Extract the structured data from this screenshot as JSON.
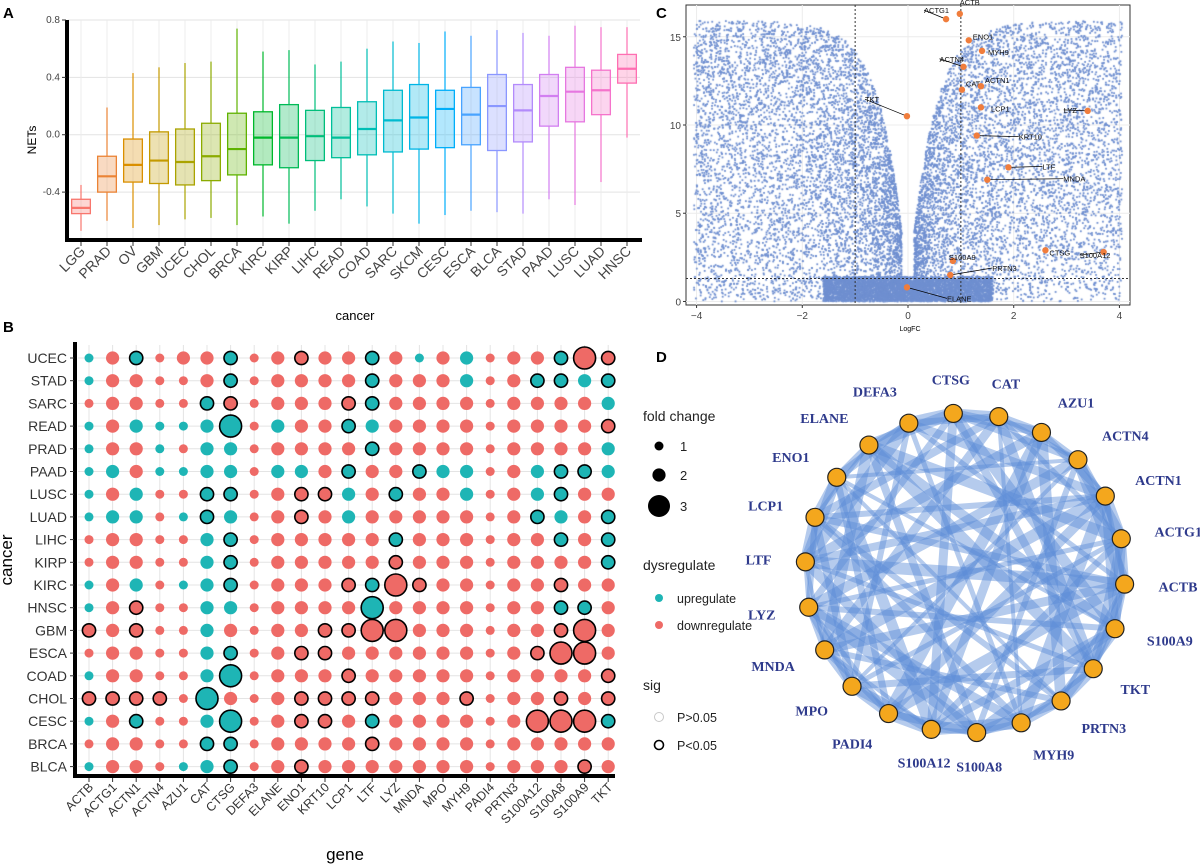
{
  "panels": {
    "a": "A",
    "b": "B",
    "c": "C",
    "d": "D"
  },
  "chart_data": [
    {
      "type": "box",
      "panel": "A",
      "xlabel": "cancer",
      "ylabel": "NETs",
      "ylim": [
        -0.72,
        0.8
      ],
      "yticks": [
        -0.4,
        0.0,
        0.4,
        0.8
      ],
      "ytick_labels": [
        "-0.4",
        "0.0",
        "0.4",
        "0.8"
      ],
      "boxes": [
        {
          "name": "LGG",
          "color": "#F8766D",
          "q1": -0.55,
          "median": -0.51,
          "q3": -0.45,
          "whisker_low": -0.67,
          "whisker_high": -0.35
        },
        {
          "name": "PRAD",
          "color": "#EB8335",
          "q1": -0.4,
          "median": -0.29,
          "q3": -0.15,
          "whisker_low": -0.6,
          "whisker_high": 0.19
        },
        {
          "name": "OV",
          "color": "#DA8F00",
          "q1": -0.33,
          "median": -0.21,
          "q3": -0.03,
          "whisker_low": -0.65,
          "whisker_high": 0.43
        },
        {
          "name": "GBM",
          "color": "#C49A00",
          "q1": -0.34,
          "median": -0.18,
          "q3": 0.02,
          "whisker_low": -0.63,
          "whisker_high": 0.47
        },
        {
          "name": "UCEC",
          "color": "#AAA300",
          "q1": -0.35,
          "median": -0.19,
          "q3": 0.04,
          "whisker_low": -0.59,
          "whisker_high": 0.5
        },
        {
          "name": "CHOL",
          "color": "#8BAB00",
          "q1": -0.32,
          "median": -0.15,
          "q3": 0.08,
          "whisker_low": -0.58,
          "whisker_high": 0.51
        },
        {
          "name": "BRCA",
          "color": "#5FB200",
          "q1": -0.28,
          "median": -0.1,
          "q3": 0.15,
          "whisker_low": -0.63,
          "whisker_high": 0.74
        },
        {
          "name": "KIRC",
          "color": "#00B82B",
          "q1": -0.21,
          "median": -0.02,
          "q3": 0.16,
          "whisker_low": -0.57,
          "whisker_high": 0.58
        },
        {
          "name": "KIRP",
          "color": "#00BB56",
          "q1": -0.23,
          "median": -0.02,
          "q3": 0.21,
          "whisker_low": -0.62,
          "whisker_high": 0.59
        },
        {
          "name": "LIHC",
          "color": "#00BE7A",
          "q1": -0.18,
          "median": -0.01,
          "q3": 0.17,
          "whisker_low": -0.53,
          "whisker_high": 0.49
        },
        {
          "name": "READ",
          "color": "#00BF99",
          "q1": -0.16,
          "median": -0.02,
          "q3": 0.19,
          "whisker_low": -0.45,
          "whisker_high": 0.51
        },
        {
          "name": "COAD",
          "color": "#00BEB5",
          "q1": -0.14,
          "median": 0.04,
          "q3": 0.23,
          "whisker_low": -0.5,
          "whisker_high": 0.6
        },
        {
          "name": "SARC",
          "color": "#00BBCF",
          "q1": -0.12,
          "median": 0.1,
          "q3": 0.31,
          "whisker_low": -0.55,
          "whisker_high": 0.65
        },
        {
          "name": "SKCM",
          "color": "#00B5E6",
          "q1": -0.1,
          "median": 0.12,
          "q3": 0.35,
          "whisker_low": -0.62,
          "whisker_high": 0.64
        },
        {
          "name": "CESC",
          "color": "#00AEF9",
          "q1": -0.09,
          "median": 0.18,
          "q3": 0.31,
          "whisker_low": -0.56,
          "whisker_high": 0.72
        },
        {
          "name": "ESCA",
          "color": "#49A3FF",
          "q1": -0.07,
          "median": 0.14,
          "q3": 0.33,
          "whisker_low": -0.53,
          "whisker_high": 0.69
        },
        {
          "name": "BLCA",
          "color": "#8A97FF",
          "q1": -0.11,
          "median": 0.2,
          "q3": 0.42,
          "whisker_low": -0.54,
          "whisker_high": 0.73
        },
        {
          "name": "STAD",
          "color": "#B38BFB",
          "q1": -0.05,
          "median": 0.17,
          "q3": 0.35,
          "whisker_low": -0.55,
          "whisker_high": 0.71
        },
        {
          "name": "PAAD",
          "color": "#D27FF1",
          "q1": 0.06,
          "median": 0.27,
          "q3": 0.42,
          "whisker_low": -0.45,
          "whisker_high": 0.69
        },
        {
          "name": "LUSC",
          "color": "#E677E0",
          "q1": 0.09,
          "median": 0.3,
          "q3": 0.47,
          "whisker_low": -0.49,
          "whisker_high": 0.76
        },
        {
          "name": "LUAD",
          "color": "#F573CB",
          "q1": 0.14,
          "median": 0.31,
          "q3": 0.45,
          "whisker_low": -0.33,
          "whisker_high": 0.75
        },
        {
          "name": "HNSC",
          "color": "#FE6FB2",
          "q1": 0.36,
          "median": 0.46,
          "q3": 0.56,
          "whisker_low": -0.02,
          "whisker_high": 0.75
        }
      ]
    },
    {
      "type": "scatter",
      "panel": "B",
      "xlabel": "gene",
      "ylabel": "cancer",
      "genes": [
        "ACTB",
        "ACTG1",
        "ACTN1",
        "ACTN4",
        "AZU1",
        "CAT",
        "CTSG",
        "DEFA3",
        "ELANE",
        "ENO1",
        "KRT10",
        "LCP1",
        "LTF",
        "LYZ",
        "MNDA",
        "MPO",
        "MYH9",
        "PADI4",
        "PRTN3",
        "S100A12",
        "S100A8",
        "S100A9",
        "TKT"
      ],
      "cancers": [
        "UCEC",
        "STAD",
        "SARC",
        "READ",
        "PRAD",
        "PAAD",
        "LUSC",
        "LUAD",
        "LIHC",
        "KIRP",
        "KIRC",
        "HNSC",
        "GBM",
        "ESCA",
        "COAD",
        "CHOL",
        "CESC",
        "BRCA",
        "BLCA"
      ],
      "encoding": "cell = [dysregulate (u = upregulate, d = downregulate)][fold change 1-3][sig (+ = P<0.05, - = P>0.05)]",
      "rows": [
        "u1- d2- u2+ d1- d2- d2- u2+ d1- d2- d2+ d2- d2- u2+ d2- u1- d2- u2- d1- d2- d2- u2+ d3+ d2+",
        "u1- d2- d2- d1- d1- d2- u2+ d1- d2- d2- d2- d2- u2+ d2- d2- d2- u2- d1- d2- u2+ u2+ u2- u2+",
        "d1- d2- d2- d1- d1- u2+ d2+ d1- d2- d2- d2- d2+ u2+ d2- d2- d2- d2- d1- d2- d2- d2- d2- u2-",
        "u1- d2- u2- u1- u1- u2- u3+ d1- u2- d2- d2- u2+ u2- d2- d2- d2- d2- d1- d2- d2- d2- d2- d2+",
        "u1- d2- d2- u1- d1- u2- u2- d1- d2- d2- d2- d2- u2+ d2- d2- d2- d2- d1- d2- d2- d2- d2- u2-",
        "u1- u2- d2- u1- u1- u2- u2- d1- u2- u2- d2- u2+ d2- d2- u2+ u2- u2- d1- d2- u2- u2+ u2+ u2-",
        "u1- d2- u2- d1- d1- u2+ u2+ d1- d2- d2+ d2+ u2- d2- u2+ d2- d2- u2- d1- d2- u2- u2+ d2- d2-",
        "u1- u2- u2- d1- u1- u2+ u2- d1- d2- d2+ d2- u2- d2- d2- d2- d2- d2- d1- d2- u2+ u2- d2- u2+",
        "d1- d2- d2- d1- d1- u2- u2+ d1- d2- d2- d2- d2- d2- u2+ d2- d2- d2- d1- d2- d2- u2+ d2- u2+",
        "d1- d2- d2- d1- d1- u2- u2+ d1- d2- d2- d2- d2- d2- d2+ d2- d2- d2- d1- d2- d2- d2- d2- u2+",
        "u1- d2- u2- d1- u1- u2- u2+ d1- d2- d2- d2- d2+ u2+ d3+ d2+ d2- d2- d1- d2- d2- d2+ d2- d2-",
        "u1- d2- d2+ d1- d1- u2- u2- d1- d2- d2- d2- d2- u3+ d2- d2- d2- d2- d1- d2- d2- u2+ u2+ d2-",
        "d2+ d2- d2+ d1- d1- u2- d2- d1- d2- d2- d2+ d2+ d3+ d3+ d2- d2- d2- d1- d2- d2- d2+ d3+ d2-",
        "d1- d2- d2- d1- d1- u2- u2+ d1- d2- d2+ d2+ d2- d2- d2- d2- d2- d2- d1- d2- d2+ d3+ d3+ d2-",
        "u1- d2- d2- d1- d1- u2- u3+ d1- d2- d2- d2- d2+ d2- d2- d2- d2- d2- d1- d2- d2- d2- d2- d2+",
        "d2+ d2+ d2+ d2+ d1- u3+ d2- d1- d2- d2+ d2+ d2+ d2+ d2- d2- d2- d2+ d1- d2- d2- d2+ d2- d2+",
        "u1- d2- u2+ d1- d1- u2- u3+ d1- d2- d2+ d2+ d2- u2+ d2- d2- d2- d2- d1- d2- d3+ d3+ d3+ u2+",
        "d1- d2- d2- d1- d1- u2+ u2+ d1- d2- d2- d2- d2- d2+ d2- d2- d2- d2- d1- d2- d2- d2- d2- d2-",
        "u1- d2- d2- d1- u1- u2- u2+ d1- d2- d2+ d2- d2- d2- d2- d2- d2- d2- d1- d2- d2- d2- d2+ d2-"
      ],
      "legend": {
        "fold_change_title": "fold change",
        "fold_change_levels": [
          "1",
          "2",
          "3"
        ],
        "dysregulate_title": "dysregulate",
        "up_label": "upregulate",
        "down_label": "downregulate",
        "up_color": "#1EB5B5",
        "down_color": "#EE6A66",
        "sig_title": "sig",
        "sig_levels": [
          "P>0.05",
          "P<0.05"
        ]
      }
    },
    {
      "type": "scatter",
      "panel": "C",
      "xlabel": "LogFC",
      "ylabel": "",
      "xlim": [
        -4.2,
        4.2
      ],
      "ylim": [
        -0.2,
        16.8
      ],
      "xticks": [
        -4,
        -2,
        0,
        2,
        4
      ],
      "yticks": [
        0,
        5,
        10,
        15
      ],
      "vlines": [
        -1,
        1
      ],
      "hline": 1.3,
      "point_color": "#6F8FD0",
      "highlight_color": "#F07D3C",
      "highlighted_genes": [
        {
          "label": "ACTB",
          "x": 0.98,
          "y": 16.3
        },
        {
          "label": "ACTG1",
          "x": 0.72,
          "y": 16.0
        },
        {
          "label": "ENO1",
          "x": 1.15,
          "y": 14.8
        },
        {
          "label": "MYH9",
          "x": 1.4,
          "y": 14.2
        },
        {
          "label": "ACTN4",
          "x": 1.05,
          "y": 13.3
        },
        {
          "label": "TKT",
          "x": -0.02,
          "y": 10.5
        },
        {
          "label": "CAT",
          "x": 1.02,
          "y": 12.0
        },
        {
          "label": "ACTN1",
          "x": 1.38,
          "y": 12.2
        },
        {
          "label": "LCP1",
          "x": 1.38,
          "y": 11.0
        },
        {
          "label": "LYZ",
          "x": 3.4,
          "y": 10.8
        },
        {
          "label": "KRT10",
          "x": 1.3,
          "y": 9.4
        },
        {
          "label": "LTF",
          "x": 1.9,
          "y": 7.6
        },
        {
          "label": "MNDA",
          "x": 1.5,
          "y": 6.9
        },
        {
          "label": "CTSG",
          "x": 2.6,
          "y": 2.9
        },
        {
          "label": "S100A12",
          "x": 3.7,
          "y": 2.8
        },
        {
          "label": "S100A9",
          "x": 0.85,
          "y": 2.3
        },
        {
          "label": "PRTN3",
          "x": 0.8,
          "y": 1.5
        },
        {
          "label": "ELANE",
          "x": -0.02,
          "y": 0.8
        }
      ]
    },
    {
      "type": "network",
      "panel": "D",
      "nodes": [
        "ACTB",
        "S100A9",
        "TKT",
        "PRTN3",
        "MYH9",
        "S100A8",
        "S100A12",
        "PADI4",
        "MPO",
        "MNDA",
        "LYZ",
        "LTF",
        "LCP1",
        "ENO1",
        "ELANE",
        "DEFA3",
        "CTSG",
        "CAT",
        "AZU1",
        "ACTN4",
        "ACTN1",
        "ACTG1"
      ],
      "node_color": "#F4A71D",
      "edge_color": "#5B8BD6",
      "label_color": "#2E3A8C",
      "edges": [
        [
          0,
          3
        ],
        [
          0,
          7
        ],
        [
          0,
          9
        ],
        [
          0,
          12
        ],
        [
          0,
          15
        ],
        [
          0,
          19
        ],
        [
          1,
          5
        ],
        [
          1,
          6
        ],
        [
          1,
          10
        ],
        [
          1,
          13
        ],
        [
          1,
          16
        ],
        [
          1,
          20
        ],
        [
          2,
          8
        ],
        [
          2,
          11
        ],
        [
          2,
          14
        ],
        [
          2,
          17
        ],
        [
          2,
          21
        ],
        [
          3,
          9
        ],
        [
          3,
          13
        ],
        [
          3,
          18
        ],
        [
          4,
          10
        ],
        [
          4,
          12
        ],
        [
          4,
          15
        ],
        [
          4,
          20
        ],
        [
          5,
          11
        ],
        [
          5,
          14
        ],
        [
          5,
          19
        ],
        [
          6,
          9
        ],
        [
          6,
          13
        ],
        [
          6,
          16
        ],
        [
          6,
          21
        ],
        [
          7,
          10
        ],
        [
          7,
          18
        ],
        [
          7,
          20
        ],
        [
          8,
          12
        ],
        [
          8,
          15
        ],
        [
          8,
          19
        ],
        [
          9,
          14
        ],
        [
          9,
          17
        ],
        [
          10,
          16
        ],
        [
          10,
          21
        ],
        [
          11,
          15
        ],
        [
          11,
          18
        ],
        [
          12,
          17
        ],
        [
          12,
          20
        ],
        [
          13,
          19
        ],
        [
          14,
          21
        ],
        [
          15,
          20
        ],
        [
          16,
          19
        ],
        [
          17,
          21
        ],
        [
          0,
          11
        ],
        [
          1,
          14
        ],
        [
          2,
          16
        ],
        [
          3,
          12
        ],
        [
          4,
          17
        ],
        [
          5,
          10
        ],
        [
          6,
          18
        ],
        [
          7,
          13
        ],
        [
          8,
          21
        ],
        [
          9,
          20
        ],
        [
          10,
          19
        ],
        [
          11,
          20
        ],
        [
          0,
          1
        ],
        [
          1,
          2
        ],
        [
          2,
          3
        ],
        [
          3,
          4
        ],
        [
          4,
          5
        ],
        [
          5,
          6
        ],
        [
          6,
          7
        ],
        [
          7,
          8
        ],
        [
          8,
          9
        ],
        [
          9,
          10
        ],
        [
          10,
          11
        ],
        [
          11,
          12
        ],
        [
          12,
          13
        ],
        [
          13,
          14
        ],
        [
          14,
          15
        ],
        [
          15,
          16
        ],
        [
          16,
          17
        ],
        [
          17,
          18
        ],
        [
          18,
          19
        ],
        [
          19,
          20
        ],
        [
          20,
          21
        ],
        [
          21,
          0
        ],
        [
          0,
          2
        ],
        [
          2,
          4
        ],
        [
          4,
          6
        ],
        [
          6,
          8
        ],
        [
          8,
          10
        ],
        [
          10,
          12
        ],
        [
          12,
          14
        ],
        [
          14,
          16
        ],
        [
          16,
          18
        ],
        [
          18,
          20
        ],
        [
          20,
          0
        ],
        [
          1,
          3
        ],
        [
          3,
          5
        ],
        [
          5,
          7
        ],
        [
          7,
          9
        ],
        [
          9,
          11
        ],
        [
          11,
          13
        ],
        [
          13,
          15
        ],
        [
          15,
          17
        ],
        [
          17,
          19
        ],
        [
          19,
          21
        ],
        [
          21,
          1
        ]
      ]
    }
  ]
}
